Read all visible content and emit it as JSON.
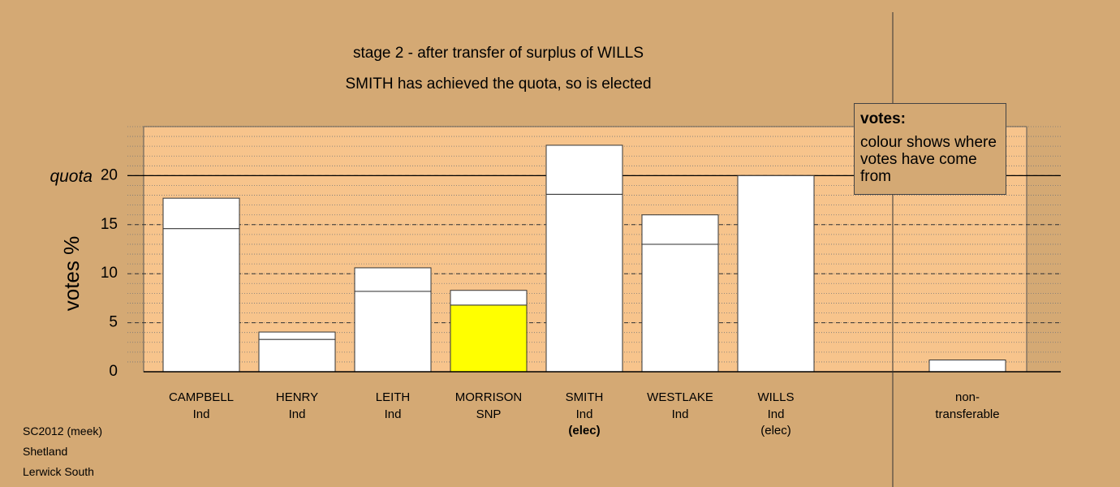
{
  "chart_data": {
    "type": "stacked_bar",
    "title": "stage 2 - after transfer of surplus of WILLS",
    "subtitle": "SMITH has achieved the quota, so is elected",
    "y_label": "votes %",
    "categories": [
      "CAMPBELL",
      "HENRY",
      "LEITH",
      "MORRISON",
      "SMITH",
      "WESTLAKE",
      "WILLS",
      null,
      "non-transferable"
    ],
    "parties": [
      "Ind",
      "Ind",
      "Ind",
      "SNP",
      "Ind",
      "Ind",
      "Ind",
      null,
      null
    ],
    "status": [
      null,
      null,
      null,
      null,
      "(elec)",
      null,
      "(elec)",
      null,
      null
    ],
    "status_bold": [
      false,
      false,
      false,
      false,
      true,
      false,
      false,
      false,
      false
    ],
    "series": [
      {
        "colors": [
          "#ffffff",
          "#ffffff",
          "#ffffff",
          "#ffff00",
          "#ffffff",
          "#ffffff",
          "#ffffff",
          null,
          "#ffffff"
        ],
        "values": [
          14.6,
          3.3,
          8.2,
          6.8,
          18.1,
          13.0,
          20,
          null,
          0
        ]
      },
      {
        "color": "#ffffff",
        "values": [
          3.1,
          0.75,
          2.4,
          1.5,
          5.0,
          3.0,
          0,
          null,
          1.2
        ]
      }
    ],
    "quota": 20,
    "quota_label": "quota",
    "ylim": [
      0,
      25
    ],
    "yticks": [
      0,
      5,
      10,
      15,
      20
    ],
    "minor_step": 1,
    "grid": true,
    "legend": {
      "title": "votes:",
      "text": "colour shows where votes have come from"
    },
    "footer": [
      "SC2012 (meek)",
      "Shetland",
      "Lerwick South"
    ]
  }
}
